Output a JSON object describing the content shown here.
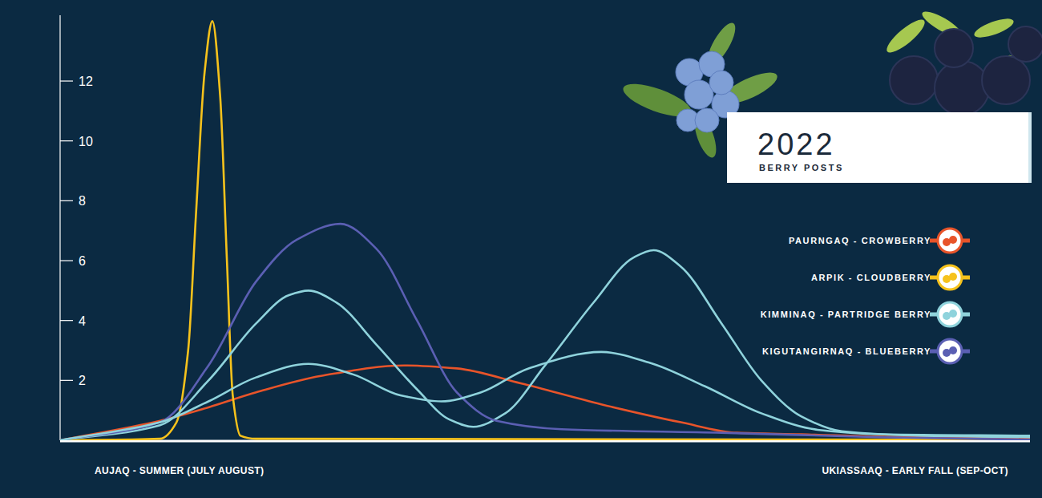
{
  "chart_data": {
    "type": "line",
    "title": "2022",
    "subtitle": "BERRY POSTS",
    "annotations": [
      "AUJAQ - SUMMER (JULY AUGUST)",
      "UKIASSAAQ - EARLY FALL (SEP-OCT)"
    ],
    "xlim": [
      0,
      100
    ],
    "ylim": [
      0,
      14.2
    ],
    "yticks": [
      2,
      4,
      6,
      8,
      10,
      12
    ],
    "tick_labels": "y",
    "legend": "right",
    "series": [
      {
        "name": "PAURNGAQ - CROWBERRY",
        "color": "#e8542a",
        "x": [
          0,
          10.3,
          15.3,
          20.2,
          26.9,
          35.5,
          40.9,
          47.5,
          55.8,
          64.0,
          69.8,
          76.4,
          84.7,
          100
        ],
        "values": [
          0,
          0.65,
          1.1,
          1.6,
          2.15,
          2.5,
          2.4,
          1.9,
          1.2,
          0.6,
          0.25,
          0.2,
          0.12,
          0.05
        ]
      },
      {
        "name": "ARPIK - CLOUDBERRY",
        "color": "#f6c21c",
        "x": [
          0,
          10.3,
          12.0,
          13.2,
          14.0,
          14.9,
          15.7,
          16.5,
          17.2,
          17.8,
          18.6,
          20.2,
          100
        ],
        "values": [
          0,
          0.05,
          0.6,
          3,
          7.5,
          12.3,
          14.0,
          11.5,
          6,
          1.5,
          0.15,
          0.05,
          0.02
        ]
      },
      {
        "name": "KIMMINAQ - PARTRIDGE BERRY",
        "color": "#8fd3dc",
        "x": [
          0,
          10.3,
          15.3,
          20.2,
          23.6,
          25.6,
          28.5,
          32.6,
          36.8,
          40.1,
          42.6,
          45.9,
          50.0,
          55.0,
          59.1,
          61.2,
          64.0,
          68.2,
          72.3,
          76.4,
          80.6,
          88.8,
          100
        ],
        "values": [
          0,
          0.5,
          2.0,
          3.9,
          4.85,
          5.0,
          4.6,
          3.2,
          1.7,
          0.7,
          0.45,
          0.9,
          2.5,
          4.6,
          6.1,
          6.35,
          5.8,
          3.9,
          2.0,
          0.8,
          0.3,
          0.15,
          0.1
        ]
      },
      {
        "name": "KIGUTANGIRNAQ - BLUEBERRY",
        "color": "#5b5fb3",
        "x": [
          0,
          10.3,
          15.3,
          20.2,
          24.4,
          28.9,
          32.6,
          36.8,
          40.9,
          45.0,
          51.7,
          68.2,
          84.7,
          100
        ],
        "values": [
          0,
          0.6,
          2.5,
          5.3,
          6.7,
          7.23,
          6.4,
          4.0,
          1.6,
          0.65,
          0.37,
          0.25,
          0.1,
          0.02
        ]
      },
      {
        "name": "KIMMINAQ - PARTRIDGE BERRY",
        "color": "#8fd3dc",
        "x": [
          0,
          10.3,
          15.3,
          20.2,
          25.6,
          30.2,
          35.1,
          39.3,
          43.4,
          48.3,
          55.8,
          60.7,
          66.5,
          72.3,
          78.1,
          84.7,
          100
        ],
        "values": [
          0,
          0.6,
          1.3,
          2.1,
          2.55,
          2.2,
          1.5,
          1.3,
          1.6,
          2.4,
          2.95,
          2.6,
          1.8,
          0.9,
          0.35,
          0.2,
          0.15
        ]
      }
    ]
  }
}
